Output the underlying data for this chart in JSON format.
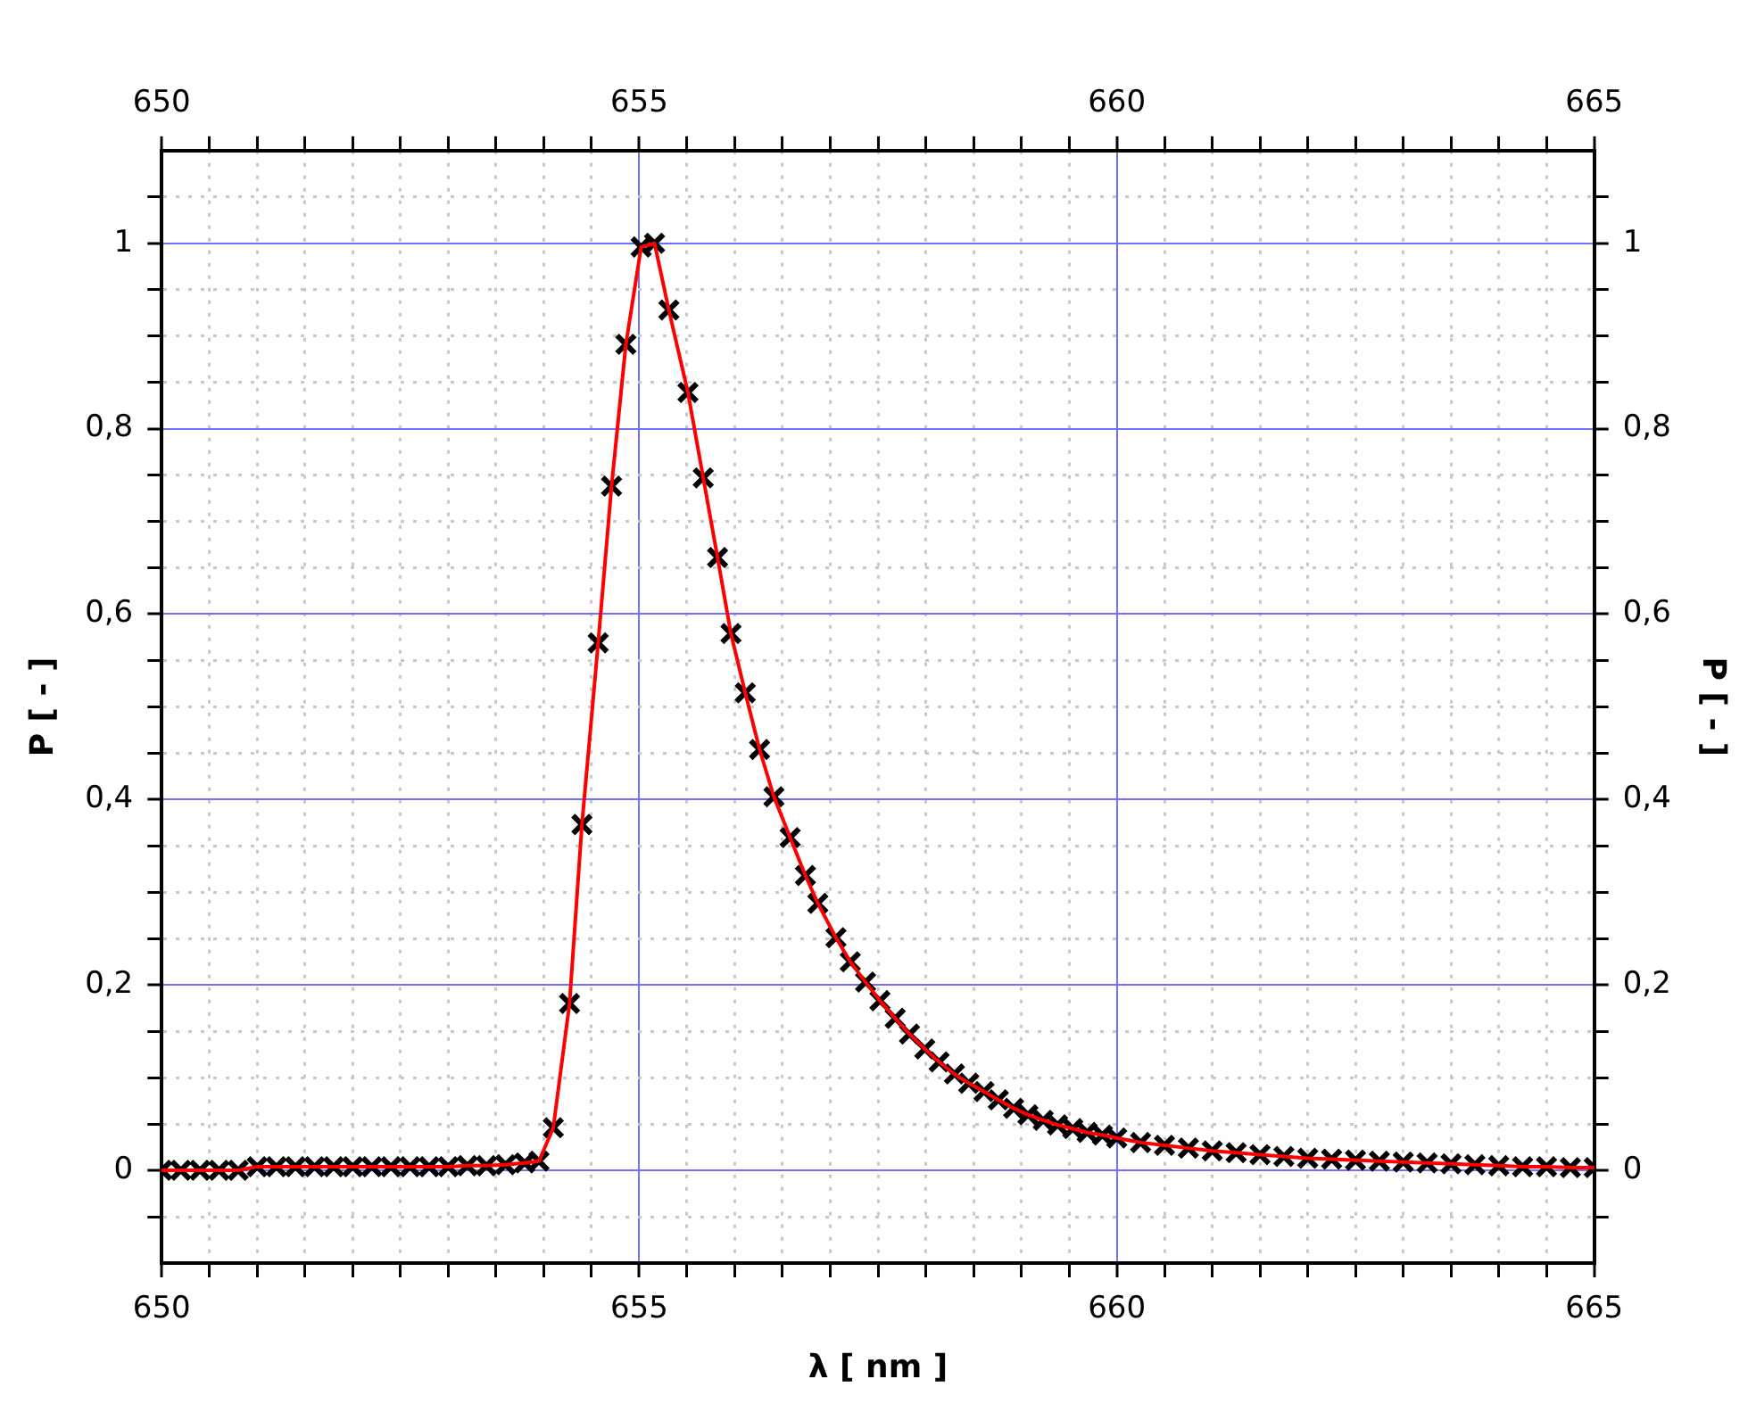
{
  "chart_data": {
    "type": "line",
    "xlabel": "λ [ nm ]",
    "ylabel": "P [ - ]",
    "y2label": "P [ - ]",
    "xlim": [
      650,
      665
    ],
    "xticks": [
      650,
      {
        "value": 650.5,
        "label": null
      },
      {
        "value": 651,
        "label": null
      },
      {
        "value": 651.5,
        "label": null
      },
      {
        "value": 652,
        "label": null
      },
      {
        "value": 652.5,
        "label": null
      },
      {
        "value": 653,
        "label": null
      },
      {
        "value": 653.5,
        "label": null
      },
      {
        "value": 654,
        "label": null
      },
      {
        "value": 654.5,
        "label": null
      },
      655,
      {
        "value": 655.5,
        "label": null
      },
      {
        "value": 656,
        "label": null
      },
      {
        "value": 656.5,
        "label": null
      },
      {
        "value": 657,
        "label": null
      },
      {
        "value": 657.5,
        "label": null
      },
      {
        "value": 658,
        "label": null
      },
      {
        "value": 658.5,
        "label": null
      },
      {
        "value": 659,
        "label": null
      },
      {
        "value": 659.5,
        "label": null
      },
      660,
      {
        "value": 660.5,
        "label": null
      },
      {
        "value": 661,
        "label": null
      },
      {
        "value": 661.5,
        "label": null
      },
      {
        "value": 662,
        "label": null
      },
      {
        "value": 662.5,
        "label": null
      },
      {
        "value": 663,
        "label": null
      },
      {
        "value": 663.5,
        "label": null
      },
      {
        "value": 664,
        "label": null
      },
      {
        "value": 664.5,
        "label": null
      },
      665
    ],
    "x2lim": [
      650,
      665
    ],
    "x2ticks": [
      650,
      {
        "value": 650.5,
        "label": null
      },
      {
        "value": 651,
        "label": null
      },
      {
        "value": 651.5,
        "label": null
      },
      {
        "value": 652,
        "label": null
      },
      {
        "value": 652.5,
        "label": null
      },
      {
        "value": 653,
        "label": null
      },
      {
        "value": 653.5,
        "label": null
      },
      {
        "value": 654,
        "label": null
      },
      {
        "value": 654.5,
        "label": null
      },
      655,
      {
        "value": 655.5,
        "label": null
      },
      {
        "value": 656,
        "label": null
      },
      {
        "value": 656.5,
        "label": null
      },
      {
        "value": 657,
        "label": null
      },
      {
        "value": 657.5,
        "label": null
      },
      {
        "value": 658,
        "label": null
      },
      {
        "value": 658.5,
        "label": null
      },
      {
        "value": 659,
        "label": null
      },
      {
        "value": 659.5,
        "label": null
      },
      660,
      {
        "value": 660.5,
        "label": null
      },
      {
        "value": 661,
        "label": null
      },
      {
        "value": 661.5,
        "label": null
      },
      {
        "value": 662,
        "label": null
      },
      {
        "value": 662.5,
        "label": null
      },
      {
        "value": 663,
        "label": null
      },
      {
        "value": 663.5,
        "label": null
      },
      {
        "value": 664,
        "label": null
      },
      {
        "value": 664.5,
        "label": null
      },
      665
    ],
    "ylim": [
      -0.1,
      1.1
    ],
    "yticks": [
      {
        "value": -0.05,
        "label": null
      },
      0,
      {
        "value": 0.05,
        "label": null
      },
      {
        "value": 0.1,
        "label": null
      },
      {
        "value": 0.15,
        "label": null
      },
      {
        "value": 0.2,
        "label": "0,2"
      },
      {
        "value": 0.25,
        "label": null
      },
      {
        "value": 0.3,
        "label": null
      },
      {
        "value": 0.35,
        "label": null
      },
      {
        "value": 0.4,
        "label": "0,4"
      },
      {
        "value": 0.45,
        "label": null
      },
      {
        "value": 0.5,
        "label": null
      },
      {
        "value": 0.55,
        "label": null
      },
      {
        "value": 0.6,
        "label": "0,6"
      },
      {
        "value": 0.65,
        "label": null
      },
      {
        "value": 0.7,
        "label": null
      },
      {
        "value": 0.75,
        "label": null
      },
      {
        "value": 0.8,
        "label": "0,8"
      },
      {
        "value": 0.85,
        "label": null
      },
      {
        "value": 0.9,
        "label": null
      },
      {
        "value": 0.95,
        "label": null
      },
      1,
      {
        "value": 1.05,
        "label": null
      }
    ],
    "y2lim": [
      -0.1,
      1.1
    ],
    "y2ticks": [
      {
        "value": -0.05,
        "label": null
      },
      0,
      {
        "value": 0.05,
        "label": null
      },
      {
        "value": 0.1,
        "label": null
      },
      {
        "value": 0.15,
        "label": null
      },
      {
        "value": 0.2,
        "label": "0,2"
      },
      {
        "value": 0.25,
        "label": null
      },
      {
        "value": 0.3,
        "label": null
      },
      {
        "value": 0.35,
        "label": null
      },
      {
        "value": 0.4,
        "label": "0,4"
      },
      {
        "value": 0.45,
        "label": null
      },
      {
        "value": 0.5,
        "label": null
      },
      {
        "value": 0.55,
        "label": null
      },
      {
        "value": 0.6,
        "label": "0,6"
      },
      {
        "value": 0.65,
        "label": null
      },
      {
        "value": 0.7,
        "label": null
      },
      {
        "value": 0.75,
        "label": null
      },
      {
        "value": 0.8,
        "label": "0,8"
      },
      {
        "value": 0.85,
        "label": null
      },
      {
        "value": 0.9,
        "label": null
      },
      {
        "value": 0.95,
        "label": null
      },
      1,
      {
        "value": 1.05,
        "label": null
      }
    ],
    "grid": true,
    "legend": false,
    "x": [
      650.0,
      650.2,
      650.4,
      650.6,
      650.8,
      651.0,
      651.2,
      651.4,
      651.6,
      651.8,
      652.0,
      652.2,
      652.4,
      652.6,
      652.8,
      653.0,
      653.2,
      653.4,
      653.6,
      653.8,
      653.95,
      654.1,
      654.27,
      654.4,
      654.57,
      654.71,
      654.86,
      655.02,
      655.16,
      655.31,
      655.51,
      655.67,
      655.82,
      655.96,
      656.11,
      656.26,
      656.41,
      656.58,
      656.74,
      656.87,
      657.06,
      657.21,
      657.37,
      657.52,
      657.68,
      657.83,
      657.99,
      658.14,
      658.3,
      658.45,
      658.61,
      658.76,
      658.92,
      659.07,
      659.23,
      659.38,
      659.54,
      659.69,
      659.85,
      660.0,
      660.25,
      660.5,
      660.75,
      661.0,
      661.25,
      661.5,
      661.75,
      662.0,
      662.25,
      662.5,
      662.75,
      663.0,
      663.25,
      663.5,
      663.75,
      664.0,
      664.25,
      664.5,
      664.75,
      665.0
    ],
    "series": [
      {
        "type": "line",
        "color": "#ff0000",
        "marker": "none",
        "values": [
          0.0,
          0.0,
          0.0,
          0.0,
          0.0,
          0.004,
          0.004,
          0.004,
          0.004,
          0.004,
          0.004,
          0.004,
          0.004,
          0.004,
          0.004,
          0.004,
          0.005,
          0.005,
          0.006,
          0.008,
          0.01,
          0.046,
          0.18,
          0.373,
          0.569,
          0.738,
          0.891,
          0.996,
          1.0,
          0.928,
          0.839,
          0.747,
          0.661,
          0.579,
          0.515,
          0.454,
          0.403,
          0.359,
          0.318,
          0.288,
          0.251,
          0.225,
          0.203,
          0.183,
          0.164,
          0.147,
          0.131,
          0.117,
          0.104,
          0.094,
          0.085,
          0.076,
          0.067,
          0.06,
          0.054,
          0.049,
          0.045,
          0.041,
          0.038,
          0.035,
          0.03,
          0.027,
          0.024,
          0.021,
          0.019,
          0.017,
          0.015,
          0.013,
          0.012,
          0.011,
          0.01,
          0.009,
          0.008,
          0.007,
          0.006,
          0.005,
          0.004,
          0.004,
          0.003,
          0.003
        ]
      },
      {
        "type": "scatter",
        "color": "#000000",
        "marker": "cross",
        "values": [
          0.0,
          0.0,
          0.0,
          0.0,
          0.0,
          0.004,
          0.004,
          0.004,
          0.004,
          0.004,
          0.004,
          0.004,
          0.004,
          0.004,
          0.004,
          0.004,
          0.005,
          0.005,
          0.006,
          0.008,
          0.01,
          0.046,
          0.18,
          0.373,
          0.569,
          0.738,
          0.891,
          0.996,
          1.0,
          0.928,
          0.839,
          0.747,
          0.661,
          0.579,
          0.515,
          0.454,
          0.403,
          0.359,
          0.318,
          0.288,
          0.251,
          0.225,
          0.203,
          0.183,
          0.164,
          0.147,
          0.131,
          0.117,
          0.104,
          0.094,
          0.085,
          0.076,
          0.067,
          0.06,
          0.054,
          0.049,
          0.045,
          0.041,
          0.038,
          0.035,
          0.03,
          0.027,
          0.024,
          0.021,
          0.019,
          0.017,
          0.015,
          0.013,
          0.012,
          0.011,
          0.01,
          0.009,
          0.008,
          0.007,
          0.006,
          0.005,
          0.004,
          0.004,
          0.003,
          0.003
        ]
      }
    ]
  }
}
